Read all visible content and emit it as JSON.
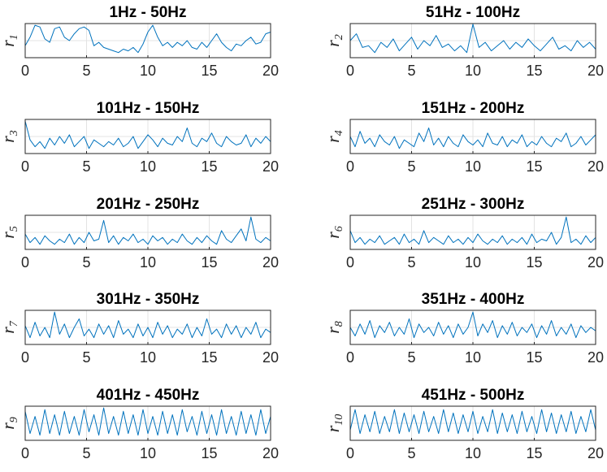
{
  "chart_data": [
    {
      "type": "line",
      "title": "1Hz - 50Hz",
      "ylabel": "r",
      "ylabel_subscript": "1",
      "xlim": [
        0,
        20
      ],
      "xticks": [
        0,
        5,
        10,
        15,
        20
      ],
      "color": "#0072BD",
      "grid": true,
      "x": [
        0,
        0.4,
        0.8,
        1.2,
        1.6,
        2,
        2.4,
        2.8,
        3.2,
        3.6,
        4,
        4.4,
        4.8,
        5.2,
        5.6,
        6,
        6.4,
        6.8,
        7.2,
        7.6,
        8,
        8.4,
        8.8,
        9.2,
        9.6,
        10,
        10.4,
        10.8,
        11.2,
        11.6,
        12,
        12.4,
        12.8,
        13.2,
        13.6,
        14,
        14.4,
        14.8,
        15.2,
        15.6,
        16,
        16.4,
        16.8,
        17.2,
        17.6,
        18,
        18.4,
        18.8,
        19.2,
        19.6,
        20
      ],
      "values": [
        0.35,
        0.6,
        0.95,
        0.9,
        0.55,
        0.45,
        0.85,
        0.9,
        0.6,
        0.5,
        0.7,
        0.85,
        0.9,
        0.8,
        0.35,
        0.45,
        0.3,
        0.25,
        0.2,
        0.15,
        0.25,
        0.2,
        0.3,
        0.15,
        0.4,
        0.75,
        0.95,
        0.6,
        0.35,
        0.45,
        0.3,
        0.45,
        0.35,
        0.5,
        0.3,
        0.25,
        0.45,
        0.3,
        0.5,
        0.7,
        0.45,
        0.3,
        0.2,
        0.4,
        0.35,
        0.5,
        0.6,
        0.4,
        0.45,
        0.7,
        0.75
      ]
    },
    {
      "type": "line",
      "title": "51Hz - 100Hz",
      "ylabel": "r",
      "ylabel_subscript": "2",
      "xlim": [
        0,
        20
      ],
      "xticks": [
        0,
        5,
        10,
        15,
        20
      ],
      "color": "#0072BD",
      "grid": true,
      "x": [
        0,
        0.5,
        1,
        1.5,
        2,
        2.5,
        3,
        3.5,
        4,
        4.5,
        5,
        5.5,
        6,
        6.5,
        7,
        7.5,
        8,
        8.5,
        9,
        9.5,
        10,
        10.5,
        11,
        11.5,
        12,
        12.5,
        13,
        13.5,
        14,
        14.5,
        15,
        15.5,
        16,
        16.5,
        17,
        17.5,
        18,
        18.5,
        19,
        19.5,
        20
      ],
      "values": [
        0.5,
        0.7,
        0.3,
        0.35,
        0.15,
        0.45,
        0.3,
        0.55,
        0.2,
        0.4,
        0.6,
        0.25,
        0.5,
        0.35,
        0.65,
        0.3,
        0.4,
        0.2,
        0.35,
        0.15,
        0.98,
        0.3,
        0.45,
        0.2,
        0.35,
        0.5,
        0.25,
        0.45,
        0.3,
        0.55,
        0.35,
        0.2,
        0.4,
        0.6,
        0.25,
        0.35,
        0.2,
        0.5,
        0.3,
        0.45,
        0.25
      ]
    },
    {
      "type": "line",
      "title": "101Hz - 150Hz",
      "ylabel": "r",
      "ylabel_subscript": "3",
      "xlim": [
        0,
        20
      ],
      "xticks": [
        0,
        5,
        10,
        15,
        20
      ],
      "color": "#0072BD",
      "grid": true,
      "x": [
        0,
        0.4,
        0.8,
        1.2,
        1.6,
        2,
        2.4,
        2.8,
        3.2,
        3.6,
        4,
        4.4,
        4.8,
        5.2,
        5.6,
        6,
        6.4,
        6.8,
        7.2,
        7.6,
        8,
        8.4,
        8.8,
        9.2,
        9.6,
        10,
        10.4,
        10.8,
        11.2,
        11.6,
        12,
        12.4,
        12.8,
        13.2,
        13.6,
        14,
        14.4,
        14.8,
        15.2,
        15.6,
        16,
        16.4,
        16.8,
        17.2,
        17.6,
        18,
        18.4,
        18.8,
        19.2,
        19.6,
        20
      ],
      "values": [
        0.95,
        0.4,
        0.2,
        0.35,
        0.15,
        0.45,
        0.25,
        0.5,
        0.3,
        0.55,
        0.2,
        0.35,
        0.5,
        0.15,
        0.4,
        0.3,
        0.2,
        0.35,
        0.25,
        0.45,
        0.2,
        0.3,
        0.5,
        0.15,
        0.35,
        0.55,
        0.4,
        0.2,
        0.45,
        0.3,
        0.25,
        0.5,
        0.35,
        0.75,
        0.3,
        0.2,
        0.45,
        0.35,
        0.6,
        0.3,
        0.2,
        0.5,
        0.35,
        0.25,
        0.3,
        0.55,
        0.2,
        0.45,
        0.3,
        0.5,
        0.35
      ]
    },
    {
      "type": "line",
      "title": "151Hz - 200Hz",
      "ylabel": "r",
      "ylabel_subscript": "4",
      "xlim": [
        0,
        20
      ],
      "xticks": [
        0,
        5,
        10,
        15,
        20
      ],
      "color": "#0072BD",
      "grid": true,
      "x": [
        0,
        0.4,
        0.8,
        1.2,
        1.6,
        2,
        2.4,
        2.8,
        3.2,
        3.6,
        4,
        4.4,
        4.8,
        5.2,
        5.6,
        6,
        6.4,
        6.8,
        7.2,
        7.6,
        8,
        8.4,
        8.8,
        9.2,
        9.6,
        10,
        10.4,
        10.8,
        11.2,
        11.6,
        12,
        12.4,
        12.8,
        13.2,
        13.6,
        14,
        14.4,
        14.8,
        15.2,
        15.6,
        16,
        16.4,
        16.8,
        17.2,
        17.6,
        18,
        18.4,
        18.8,
        19.2,
        19.6,
        20
      ],
      "values": [
        0.5,
        0.2,
        0.65,
        0.3,
        0.45,
        0.2,
        0.55,
        0.35,
        0.25,
        0.5,
        0.15,
        0.4,
        0.3,
        0.2,
        0.6,
        0.35,
        0.75,
        0.25,
        0.45,
        0.2,
        0.5,
        0.3,
        0.2,
        0.55,
        0.35,
        0.25,
        0.4,
        0.2,
        0.6,
        0.3,
        0.25,
        0.5,
        0.2,
        0.4,
        0.3,
        0.55,
        0.2,
        0.35,
        0.25,
        0.5,
        0.3,
        0.2,
        0.45,
        0.35,
        0.6,
        0.2,
        0.3,
        0.5,
        0.25,
        0.4,
        0.55
      ]
    },
    {
      "type": "line",
      "title": "201Hz - 250Hz",
      "ylabel": "r",
      "ylabel_subscript": "5",
      "xlim": [
        0,
        20
      ],
      "xticks": [
        0,
        5,
        10,
        15,
        20
      ],
      "color": "#0072BD",
      "grid": true,
      "x": [
        0,
        0.4,
        0.8,
        1.2,
        1.6,
        2,
        2.4,
        2.8,
        3.2,
        3.6,
        4,
        4.4,
        4.8,
        5.2,
        5.6,
        6,
        6.4,
        6.8,
        7.2,
        7.6,
        8,
        8.4,
        8.8,
        9.2,
        9.6,
        10,
        10.4,
        10.8,
        11.2,
        11.6,
        12,
        12.4,
        12.8,
        13.2,
        13.6,
        14,
        14.4,
        14.8,
        15.2,
        15.6,
        16,
        16.4,
        16.8,
        17.2,
        17.6,
        18,
        18.4,
        18.8,
        19.2,
        19.6,
        20
      ],
      "values": [
        0.45,
        0.2,
        0.35,
        0.15,
        0.4,
        0.25,
        0.15,
        0.3,
        0.2,
        0.45,
        0.15,
        0.35,
        0.2,
        0.5,
        0.25,
        0.3,
        0.85,
        0.2,
        0.4,
        0.15,
        0.35,
        0.25,
        0.45,
        0.2,
        0.3,
        0.15,
        0.4,
        0.25,
        0.35,
        0.15,
        0.3,
        0.2,
        0.45,
        0.25,
        0.15,
        0.35,
        0.2,
        0.4,
        0.25,
        0.15,
        0.55,
        0.3,
        0.2,
        0.4,
        0.6,
        0.25,
        0.95,
        0.3,
        0.2,
        0.35,
        0.25
      ]
    },
    {
      "type": "line",
      "title": "251Hz - 300Hz",
      "ylabel": "r",
      "ylabel_subscript": "6",
      "xlim": [
        0,
        20
      ],
      "xticks": [
        0,
        5,
        10,
        15,
        20
      ],
      "color": "#0072BD",
      "grid": true,
      "x": [
        0,
        0.4,
        0.8,
        1.2,
        1.6,
        2,
        2.4,
        2.8,
        3.2,
        3.6,
        4,
        4.4,
        4.8,
        5.2,
        5.6,
        6,
        6.4,
        6.8,
        7.2,
        7.6,
        8,
        8.4,
        8.8,
        9.2,
        9.6,
        10,
        10.4,
        10.8,
        11.2,
        11.6,
        12,
        12.4,
        12.8,
        13.2,
        13.6,
        14,
        14.4,
        14.8,
        15.2,
        15.6,
        16,
        16.4,
        16.8,
        17.2,
        17.6,
        18,
        18.4,
        18.8,
        19.2,
        19.6,
        20
      ],
      "values": [
        0.55,
        0.2,
        0.35,
        0.15,
        0.3,
        0.2,
        0.4,
        0.15,
        0.25,
        0.35,
        0.15,
        0.45,
        0.2,
        0.3,
        0.15,
        0.55,
        0.2,
        0.35,
        0.25,
        0.15,
        0.4,
        0.2,
        0.3,
        0.15,
        0.35,
        0.2,
        0.45,
        0.25,
        0.15,
        0.3,
        0.2,
        0.4,
        0.15,
        0.3,
        0.2,
        0.35,
        0.15,
        0.45,
        0.2,
        0.3,
        0.25,
        0.5,
        0.15,
        0.35,
        0.95,
        0.2,
        0.3,
        0.15,
        0.4,
        0.2,
        0.35
      ]
    },
    {
      "type": "line",
      "title": "301Hz - 350Hz",
      "ylabel": "r",
      "ylabel_subscript": "7",
      "xlim": [
        0,
        20
      ],
      "xticks": [
        0,
        5,
        10,
        15,
        20
      ],
      "color": "#0072BD",
      "grid": true,
      "x": [
        0,
        0.4,
        0.8,
        1.2,
        1.6,
        2,
        2.4,
        2.8,
        3.2,
        3.6,
        4,
        4.4,
        4.8,
        5.2,
        5.6,
        6,
        6.4,
        6.8,
        7.2,
        7.6,
        8,
        8.4,
        8.8,
        9.2,
        9.6,
        10,
        10.4,
        10.8,
        11.2,
        11.6,
        12,
        12.4,
        12.8,
        13.2,
        13.6,
        14,
        14.4,
        14.8,
        15.2,
        15.6,
        16,
        16.4,
        16.8,
        17.2,
        17.6,
        18,
        18.4,
        18.8,
        19.2,
        19.6,
        20
      ],
      "values": [
        0.55,
        0.2,
        0.65,
        0.25,
        0.5,
        0.2,
        0.95,
        0.3,
        0.6,
        0.2,
        0.5,
        0.75,
        0.25,
        0.45,
        0.2,
        0.6,
        0.3,
        0.55,
        0.2,
        0.7,
        0.3,
        0.45,
        0.2,
        0.6,
        0.25,
        0.5,
        0.2,
        0.65,
        0.3,
        0.55,
        0.2,
        0.45,
        0.3,
        0.6,
        0.2,
        0.5,
        0.25,
        0.75,
        0.3,
        0.45,
        0.2,
        0.6,
        0.3,
        0.55,
        0.2,
        0.5,
        0.3,
        0.65,
        0.2,
        0.45,
        0.35
      ]
    },
    {
      "type": "line",
      "title": "351Hz - 400Hz",
      "ylabel": "r",
      "ylabel_subscript": "8",
      "xlim": [
        0,
        20
      ],
      "xticks": [
        0,
        5,
        10,
        15,
        20
      ],
      "color": "#0072BD",
      "grid": true,
      "x": [
        0,
        0.4,
        0.8,
        1.2,
        1.6,
        2,
        2.4,
        2.8,
        3.2,
        3.6,
        4,
        4.4,
        4.8,
        5.2,
        5.6,
        6,
        6.4,
        6.8,
        7.2,
        7.6,
        8,
        8.4,
        8.8,
        9.2,
        9.6,
        10,
        10.4,
        10.8,
        11.2,
        11.6,
        12,
        12.4,
        12.8,
        13.2,
        13.6,
        14,
        14.4,
        14.8,
        15.2,
        15.6,
        16,
        16.4,
        16.8,
        17.2,
        17.6,
        18,
        18.4,
        18.8,
        19.2,
        19.6,
        20
      ],
      "values": [
        0.5,
        0.25,
        0.6,
        0.3,
        0.7,
        0.2,
        0.55,
        0.35,
        0.65,
        0.25,
        0.5,
        0.3,
        0.75,
        0.2,
        0.6,
        0.35,
        0.5,
        0.25,
        0.65,
        0.3,
        0.55,
        0.2,
        0.6,
        0.3,
        0.5,
        0.95,
        0.25,
        0.6,
        0.35,
        0.7,
        0.2,
        0.55,
        0.3,
        0.65,
        0.25,
        0.5,
        0.35,
        0.6,
        0.2,
        0.55,
        0.3,
        0.7,
        0.25,
        0.5,
        0.3,
        0.6,
        0.2,
        0.55,
        0.35,
        0.5,
        0.4
      ]
    },
    {
      "type": "line",
      "title": "401Hz - 450Hz",
      "ylabel": "r",
      "ylabel_subscript": "9",
      "xlim": [
        0,
        20
      ],
      "xticks": [
        0,
        5,
        10,
        15,
        20
      ],
      "color": "#0072BD",
      "grid": true,
      "x": [
        0,
        0.4,
        0.8,
        1.2,
        1.6,
        2,
        2.4,
        2.8,
        3.2,
        3.6,
        4,
        4.4,
        4.8,
        5.2,
        5.6,
        6,
        6.4,
        6.8,
        7.2,
        7.6,
        8,
        8.4,
        8.8,
        9.2,
        9.6,
        10,
        10.4,
        10.8,
        11.2,
        11.6,
        12,
        12.4,
        12.8,
        13.2,
        13.6,
        14,
        14.4,
        14.8,
        15.2,
        15.6,
        16,
        16.4,
        16.8,
        17.2,
        17.6,
        18,
        18.4,
        18.8,
        19.2,
        19.6,
        20
      ],
      "values": [
        0.85,
        0.2,
        0.7,
        0.15,
        0.9,
        0.2,
        0.75,
        0.15,
        0.85,
        0.2,
        0.7,
        0.15,
        0.9,
        0.25,
        0.75,
        0.15,
        0.95,
        0.2,
        0.7,
        0.15,
        0.85,
        0.2,
        0.75,
        0.15,
        0.9,
        0.2,
        0.7,
        0.15,
        0.85,
        0.2,
        0.75,
        0.15,
        0.9,
        0.25,
        0.7,
        0.15,
        0.85,
        0.2,
        0.75,
        0.15,
        0.9,
        0.2,
        0.7,
        0.15,
        0.85,
        0.2,
        0.75,
        0.15,
        0.9,
        0.2,
        0.7
      ]
    },
    {
      "type": "line",
      "title": "451Hz - 500Hz",
      "ylabel": "r",
      "ylabel_subscript": "10",
      "xlim": [
        0,
        20
      ],
      "xticks": [
        0,
        5,
        10,
        15,
        20
      ],
      "color": "#0072BD",
      "grid": true,
      "x": [
        0,
        0.4,
        0.8,
        1.2,
        1.6,
        2,
        2.4,
        2.8,
        3.2,
        3.6,
        4,
        4.4,
        4.8,
        5.2,
        5.6,
        6,
        6.4,
        6.8,
        7.2,
        7.6,
        8,
        8.4,
        8.8,
        9.2,
        9.6,
        10,
        10.4,
        10.8,
        11.2,
        11.6,
        12,
        12.4,
        12.8,
        13.2,
        13.6,
        14,
        14.4,
        14.8,
        15.2,
        15.6,
        16,
        16.4,
        16.8,
        17.2,
        17.6,
        18,
        18.4,
        18.8,
        19.2,
        19.6,
        20
      ],
      "values": [
        0.3,
        0.9,
        0.2,
        0.75,
        0.25,
        0.85,
        0.2,
        0.7,
        0.25,
        0.9,
        0.2,
        0.8,
        0.25,
        0.75,
        0.2,
        0.85,
        0.25,
        0.7,
        0.2,
        0.9,
        0.25,
        0.8,
        0.2,
        0.75,
        0.25,
        0.85,
        0.2,
        0.7,
        0.25,
        0.9,
        0.2,
        0.8,
        0.25,
        0.75,
        0.2,
        0.85,
        0.25,
        0.7,
        0.2,
        0.9,
        0.25,
        0.8,
        0.2,
        0.75,
        0.25,
        0.85,
        0.2,
        0.7,
        0.25,
        0.9,
        0.3
      ]
    }
  ]
}
